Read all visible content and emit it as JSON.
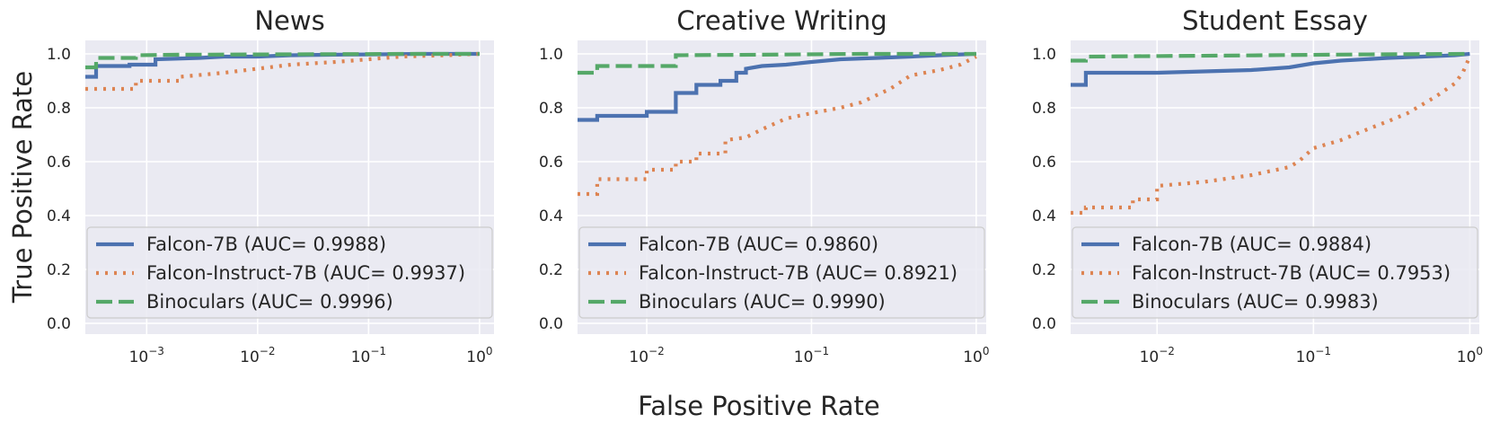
{
  "figure": {
    "ylabel": "True Positive Rate",
    "xlabel": "False Positive Rate"
  },
  "chart_data": [
    {
      "type": "line",
      "title": "News",
      "xscale": "log",
      "xlim": [
        0.00028,
        1.35
      ],
      "ylim": [
        -0.04,
        1.05
      ],
      "xticks": [
        {
          "value": 0.001,
          "base": "10",
          "exp": "−3"
        },
        {
          "value": 0.01,
          "base": "10",
          "exp": "−2"
        },
        {
          "value": 0.1,
          "base": "10",
          "exp": "−1"
        },
        {
          "value": 1,
          "base": "10",
          "exp": "0"
        }
      ],
      "yticks": [
        "0.0",
        "0.2",
        "0.4",
        "0.6",
        "0.8",
        "1.0"
      ],
      "grid": true,
      "legend_position": "lower-left",
      "series": [
        {
          "name": "Falcon-7B (AUC= 0.9988)",
          "color": "#4c72b0",
          "style": "solid",
          "x": [
            0.00028,
            0.00035,
            0.00035,
            0.0007,
            0.0007,
            0.0012,
            0.0012,
            0.003,
            0.005,
            0.01,
            0.02,
            0.05,
            0.1,
            0.3,
            1
          ],
          "y": [
            0.915,
            0.915,
            0.955,
            0.955,
            0.96,
            0.96,
            0.98,
            0.985,
            0.99,
            0.99,
            0.995,
            0.997,
            0.998,
            1.0,
            1.0
          ]
        },
        {
          "name": "Falcon-Instruct-7B (AUC= 0.9937)",
          "color": "#dd8452",
          "style": "dotted",
          "x": [
            0.00028,
            0.0008,
            0.0008,
            0.002,
            0.002,
            0.005,
            0.01,
            0.02,
            0.05,
            0.1,
            0.2,
            0.5,
            1
          ],
          "y": [
            0.87,
            0.87,
            0.9,
            0.9,
            0.915,
            0.93,
            0.945,
            0.96,
            0.97,
            0.98,
            0.99,
            0.995,
            1.0
          ]
        },
        {
          "name": "Binoculars (AUC= 0.9996)",
          "color": "#55a868",
          "style": "dashed",
          "x": [
            0.00028,
            0.00035,
            0.00035,
            0.0008,
            0.0008,
            0.002,
            0.01,
            0.05,
            0.2,
            1
          ],
          "y": [
            0.95,
            0.95,
            0.985,
            0.985,
            0.995,
            0.997,
            0.998,
            0.999,
            1.0,
            1.0
          ]
        }
      ]
    },
    {
      "type": "line",
      "title": "Creative Writing",
      "xscale": "log",
      "xlim": [
        0.0038,
        1.15
      ],
      "ylim": [
        -0.04,
        1.05
      ],
      "xticks": [
        {
          "value": 0.01,
          "base": "10",
          "exp": "−2"
        },
        {
          "value": 0.1,
          "base": "10",
          "exp": "−1"
        },
        {
          "value": 1,
          "base": "10",
          "exp": "0"
        }
      ],
      "yticks": [
        "0.0",
        "0.2",
        "0.4",
        "0.6",
        "0.8",
        "1.0"
      ],
      "grid": true,
      "legend_position": "lower-left",
      "series": [
        {
          "name": "Falcon-7B (AUC= 0.9860)",
          "color": "#4c72b0",
          "style": "solid",
          "x": [
            0.0038,
            0.005,
            0.005,
            0.01,
            0.01,
            0.015,
            0.015,
            0.02,
            0.02,
            0.028,
            0.028,
            0.035,
            0.035,
            0.04,
            0.04,
            0.05,
            0.07,
            0.1,
            0.15,
            0.25,
            0.4,
            0.6,
            1
          ],
          "y": [
            0.755,
            0.755,
            0.77,
            0.77,
            0.785,
            0.785,
            0.855,
            0.855,
            0.885,
            0.885,
            0.9,
            0.9,
            0.93,
            0.93,
            0.945,
            0.955,
            0.96,
            0.97,
            0.98,
            0.985,
            0.99,
            0.995,
            1.0
          ]
        },
        {
          "name": "Falcon-Instruct-7B (AUC= 0.8921)",
          "color": "#dd8452",
          "style": "dotted",
          "x": [
            0.0038,
            0.005,
            0.005,
            0.01,
            0.01,
            0.015,
            0.015,
            0.02,
            0.02,
            0.03,
            0.03,
            0.04,
            0.05,
            0.07,
            0.1,
            0.15,
            0.2,
            0.3,
            0.4,
            0.6,
            0.8,
            1
          ],
          "y": [
            0.48,
            0.48,
            0.535,
            0.535,
            0.57,
            0.57,
            0.6,
            0.6,
            0.63,
            0.63,
            0.68,
            0.69,
            0.72,
            0.76,
            0.78,
            0.8,
            0.82,
            0.87,
            0.92,
            0.94,
            0.96,
            0.99
          ]
        },
        {
          "name": "Binoculars (AUC= 0.9990)",
          "color": "#55a868",
          "style": "dashed",
          "x": [
            0.0038,
            0.005,
            0.005,
            0.015,
            0.015,
            0.05,
            0.2,
            1
          ],
          "y": [
            0.93,
            0.93,
            0.955,
            0.955,
            0.995,
            0.997,
            1.0,
            1.0
          ]
        }
      ]
    },
    {
      "type": "line",
      "title": "Student Essay",
      "xscale": "log",
      "xlim": [
        0.0028,
        1.15
      ],
      "ylim": [
        -0.04,
        1.05
      ],
      "xticks": [
        {
          "value": 0.01,
          "base": "10",
          "exp": "−2"
        },
        {
          "value": 0.1,
          "base": "10",
          "exp": "−1"
        },
        {
          "value": 1,
          "base": "10",
          "exp": "0"
        }
      ],
      "yticks": [
        "0.0",
        "0.2",
        "0.4",
        "0.6",
        "0.8",
        "1.0"
      ],
      "grid": true,
      "legend_position": "lower-left",
      "series": [
        {
          "name": "Falcon-7B (AUC= 0.9884)",
          "color": "#4c72b0",
          "style": "solid",
          "x": [
            0.0028,
            0.0035,
            0.0035,
            0.01,
            0.02,
            0.04,
            0.07,
            0.1,
            0.15,
            0.3,
            0.5,
            0.8,
            1
          ],
          "y": [
            0.885,
            0.885,
            0.93,
            0.93,
            0.935,
            0.94,
            0.95,
            0.965,
            0.975,
            0.985,
            0.99,
            0.995,
            1.0
          ]
        },
        {
          "name": "Falcon-Instruct-7B (AUC= 0.7953)",
          "color": "#dd8452",
          "style": "dotted",
          "x": [
            0.0028,
            0.0035,
            0.0035,
            0.007,
            0.007,
            0.01,
            0.01,
            0.02,
            0.04,
            0.07,
            0.08,
            0.1,
            0.15,
            0.2,
            0.3,
            0.4,
            0.6,
            0.8,
            0.9,
            1
          ],
          "y": [
            0.41,
            0.41,
            0.43,
            0.43,
            0.46,
            0.46,
            0.51,
            0.525,
            0.55,
            0.58,
            0.6,
            0.65,
            0.68,
            0.71,
            0.75,
            0.78,
            0.84,
            0.89,
            0.93,
            0.99
          ]
        },
        {
          "name": "Binoculars (AUC= 0.9983)",
          "color": "#55a868",
          "style": "dashed",
          "x": [
            0.0028,
            0.0035,
            0.0035,
            0.05,
            0.2,
            1
          ],
          "y": [
            0.975,
            0.975,
            0.99,
            0.995,
            0.998,
            1.0
          ]
        }
      ]
    }
  ]
}
